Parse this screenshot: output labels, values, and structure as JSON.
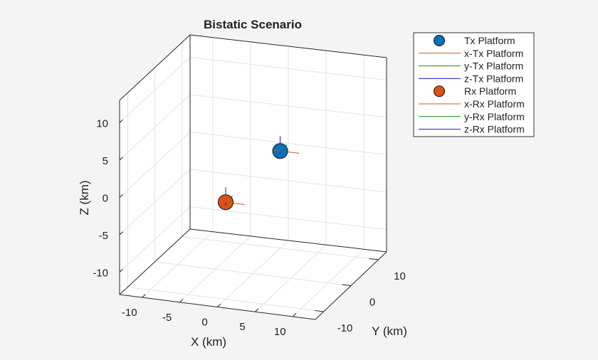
{
  "chart_data": {
    "type": "scatter",
    "title": "Bistatic Scenario",
    "xlabel": "X (km)",
    "ylabel": "Y (km)",
    "zlabel": "Z (km)",
    "xlim": [
      -13,
      13
    ],
    "ylim": [
      -13,
      13
    ],
    "zlim": [
      -13,
      13
    ],
    "xticks": [
      "-10",
      "-5",
      "0",
      "5",
      "10"
    ],
    "yticks": [
      "-10",
      "0",
      "10"
    ],
    "zticks": [
      "-10",
      "-5",
      "0",
      "5",
      "10"
    ],
    "grid": true,
    "legend_location": "top-right outside",
    "series": [
      {
        "name": "Tx Platform",
        "marker": "circle",
        "color": "#0072BD",
        "points": [
          {
            "x": 0,
            "y": 10,
            "z": 0
          }
        ]
      },
      {
        "name": "x-Tx Platform",
        "marker": "line",
        "color": "#D95319"
      },
      {
        "name": "y-Tx Platform",
        "marker": "line",
        "color": "#1a8a1a"
      },
      {
        "name": "z-Tx Platform",
        "marker": "line",
        "color": "#1a1acc"
      },
      {
        "name": "Rx Platform",
        "marker": "circle",
        "color": "#D95319",
        "points": [
          {
            "x": 0,
            "y": -10,
            "z": 0
          }
        ]
      },
      {
        "name": "x-Rx Platform",
        "marker": "line",
        "color": "#D95319"
      },
      {
        "name": "y-Rx Platform",
        "marker": "line",
        "color": "#1a8a1a"
      },
      {
        "name": "z-Rx Platform",
        "marker": "line",
        "color": "#1a1acc"
      }
    ]
  }
}
